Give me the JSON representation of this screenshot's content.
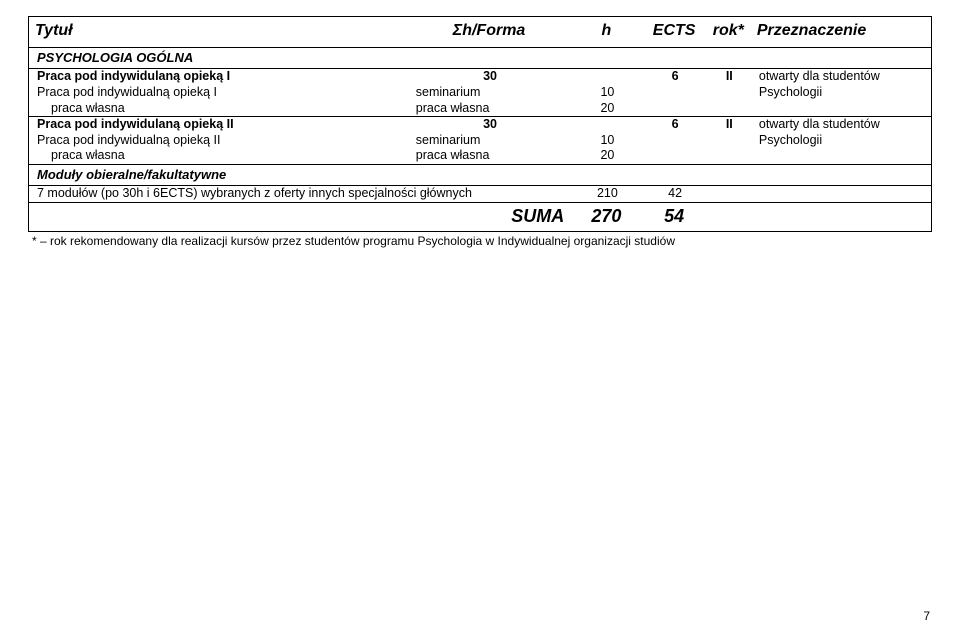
{
  "header": {
    "title": "Tytuł",
    "forma": "Σh/Forma",
    "h": "h",
    "ects": "ECTS",
    "rok": "rok*",
    "przez": "Przeznaczenie"
  },
  "section1": {
    "label": "PSYCHOLOGIA OGÓLNA"
  },
  "block1": {
    "row1": {
      "title": "Praca pod indywidulaną opieką I",
      "forma": "30",
      "h": "",
      "ects": "6",
      "rok": "II",
      "przez": "otwarty dla studentów"
    },
    "row2": {
      "title": "Praca pod indywidualną opieką I",
      "forma": "seminarium",
      "h": "10",
      "ects": "",
      "rok": "",
      "przez": "Psychologii"
    },
    "row3": {
      "title": "praca własna",
      "forma": "praca własna",
      "h": "20",
      "ects": "",
      "rok": "",
      "przez": ""
    }
  },
  "block2": {
    "row1": {
      "title": "Praca pod indywidulaną opieką II",
      "forma": "30",
      "h": "",
      "ects": "6",
      "rok": "II",
      "przez": "otwarty dla studentów"
    },
    "row2": {
      "title": "Praca pod indywidualną opieką II",
      "forma": "seminarium",
      "h": "10",
      "ects": "",
      "rok": "",
      "przez": "Psychologii"
    },
    "row3": {
      "title": "praca własna",
      "forma": "praca własna",
      "h": "20",
      "ects": "",
      "rok": "",
      "przez": ""
    }
  },
  "section2": {
    "label": "Moduły obieralne/fakultatywne"
  },
  "modules": {
    "row": {
      "title": "7 modułów (po 30h i 6ECTS) wybranych z oferty innych specjalności głównych",
      "h": "210",
      "ects": "42"
    }
  },
  "suma": {
    "label": "SUMA",
    "h": "270",
    "ects": "54"
  },
  "footnote": "* – rok rekomendowany dla realizacji kursów przez studentów programu Psychologia w Indywidualnej organizacji studiów",
  "pagenum": "7"
}
